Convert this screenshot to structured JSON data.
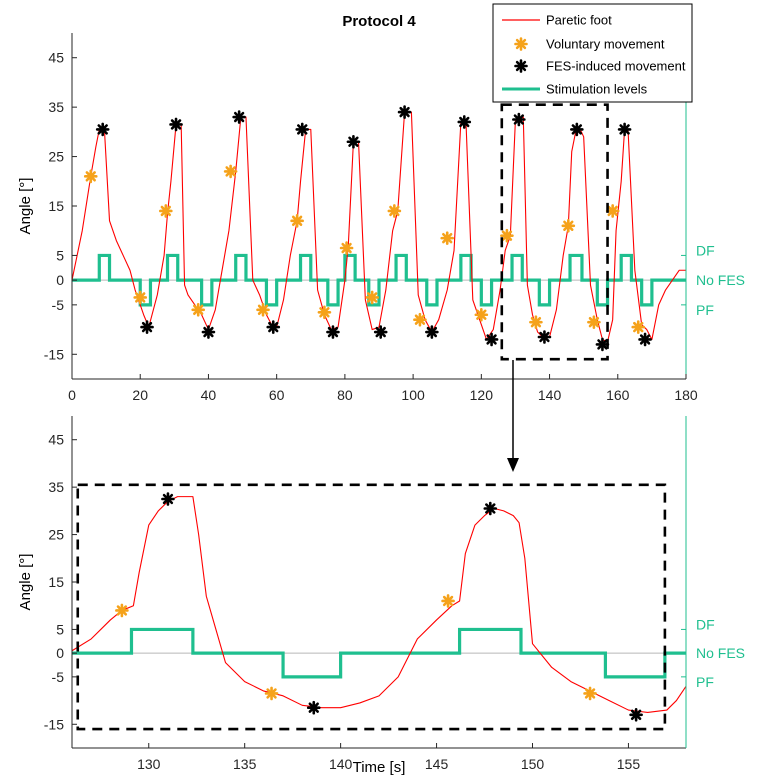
{
  "chart_data": [
    {
      "type": "line",
      "title": "Protocol 4",
      "xlabel": "",
      "ylabel": "Angle [°]",
      "xlim": [
        0,
        180
      ],
      "ylim": [
        -20,
        50
      ],
      "xticks": [
        0,
        20,
        40,
        60,
        80,
        100,
        120,
        140,
        160,
        180
      ],
      "yticks": [
        -15,
        -5,
        0,
        5,
        15,
        25,
        35,
        45
      ],
      "right_axis_labels": [
        {
          "value": 5,
          "label": "DF"
        },
        {
          "value": 0,
          "label": "No FES"
        },
        {
          "value": -5,
          "label": "PF"
        }
      ],
      "legend": {
        "placement": "top-right",
        "entries": [
          "Paretic foot",
          "Voluntary movement",
          "FES-induced movement",
          "Stimulation levels"
        ]
      },
      "series": [
        {
          "name": "Paretic foot",
          "color": "#ff0000",
          "x": [
            0,
            3,
            5.5,
            7,
            8,
            9.5,
            11,
            13,
            15,
            17,
            18.5,
            19.5,
            21,
            22.5,
            25,
            27,
            28,
            29,
            30.5,
            32,
            33,
            34,
            36,
            38,
            40,
            42,
            44,
            46,
            48,
            49.5,
            51,
            53,
            55,
            57,
            58.5,
            60,
            62,
            64,
            66,
            67,
            68.5,
            70,
            72,
            74,
            76,
            78,
            80,
            81,
            82.5,
            84,
            86,
            88,
            90,
            92,
            94,
            95.5,
            97.5,
            99.5,
            101.5,
            103.5,
            105.5,
            107.5,
            110,
            112,
            114,
            115.5,
            117.5,
            119.5,
            121.5,
            123.5,
            125.5,
            127,
            128.5,
            130,
            131,
            132.3,
            133.5,
            135,
            136.5,
            138,
            140,
            142,
            144,
            145.5,
            146.5,
            147.8,
            149,
            150,
            152,
            154,
            155.5,
            157,
            158.5,
            159.5,
            161,
            162,
            163,
            165,
            167,
            168.5,
            170,
            172,
            174,
            176,
            178,
            180
          ],
          "y": [
            0,
            10,
            21,
            27,
            30.5,
            30.5,
            12,
            8,
            5,
            2,
            -2,
            -4,
            -7,
            -9.5,
            -3,
            5,
            13.5,
            20,
            31.5,
            31.5,
            -1,
            -3,
            -5,
            -7,
            -10,
            -6,
            2,
            10,
            22,
            33,
            33,
            0,
            -3,
            -7,
            -9,
            -9.5,
            -4,
            5,
            12,
            20,
            30.5,
            30.5,
            -2,
            -7,
            -10,
            -9.5,
            0,
            7,
            28,
            28,
            -4,
            -10,
            -9.5,
            -2,
            10,
            14,
            34,
            34,
            -3,
            -8,
            -10.5,
            -8,
            -2,
            6,
            32,
            32,
            -4,
            -8,
            -12,
            -10,
            -2,
            6,
            9,
            32.5,
            32.5,
            33,
            -1,
            -7,
            -10.5,
            -11.5,
            -11.5,
            -6,
            5,
            11,
            26,
            30.5,
            30.5,
            29,
            -1,
            -8,
            -12,
            -12.5,
            -8,
            10,
            20,
            30.5,
            30.5,
            2,
            -9,
            -10,
            -12,
            -5,
            -2,
            0,
            2,
            2
          ]
        },
        {
          "name": "Stimulation levels",
          "color": "#1fbf8f",
          "x": [
            0,
            8,
            8,
            11,
            11,
            20,
            20,
            23,
            23,
            28,
            28,
            31,
            31,
            38,
            38,
            41,
            41,
            48,
            48,
            51,
            51,
            57,
            57,
            60,
            60,
            67,
            67,
            70,
            70,
            75,
            75,
            78,
            78,
            80,
            80,
            83,
            83,
            87,
            87,
            90,
            90,
            95,
            95,
            98,
            98,
            104,
            104,
            107,
            107,
            114,
            114,
            117,
            117,
            120,
            120,
            123,
            123,
            129,
            129,
            132,
            132,
            137,
            137,
            140,
            140,
            146,
            146,
            149.5,
            149.5,
            154,
            154,
            157,
            157,
            161,
            161,
            164,
            164,
            167,
            167,
            170,
            170,
            180
          ],
          "y": [
            0,
            0,
            5,
            5,
            0,
            0,
            -5,
            -5,
            0,
            0,
            5,
            5,
            0,
            0,
            -5,
            -5,
            0,
            0,
            5,
            5,
            0,
            0,
            -5,
            -5,
            0,
            0,
            5,
            5,
            0,
            0,
            -5,
            -5,
            0,
            0,
            5,
            5,
            0,
            0,
            -5,
            -5,
            0,
            0,
            5,
            5,
            0,
            0,
            -5,
            -5,
            0,
            0,
            5,
            5,
            0,
            0,
            -5,
            -5,
            0,
            0,
            5,
            5,
            0,
            0,
            -5,
            -5,
            0,
            0,
            5,
            5,
            0,
            0,
            -5,
            -5,
            0,
            0,
            5,
            5,
            0,
            0,
            -5,
            -5,
            0,
            0
          ]
        },
        {
          "name": "Voluntary movement",
          "color": "#f5a21b",
          "x": [
            5.5,
            20,
            27.5,
            37,
            46.5,
            56,
            66,
            74,
            80.5,
            88,
            94.5,
            102,
            110,
            120,
            127.5,
            136,
            145.5,
            153,
            158.5,
            166
          ],
          "y": [
            21,
            -3.5,
            14,
            -6,
            22,
            -6,
            12,
            -6.5,
            6.5,
            -3.5,
            14,
            -8,
            8.5,
            -7,
            9,
            -8.5,
            11,
            -8.5,
            14,
            -9.5
          ]
        },
        {
          "name": "FES-induced movement",
          "color": "#000000",
          "x": [
            9,
            22,
            30.5,
            40,
            49,
            59,
            67.5,
            76.5,
            82.5,
            90.5,
            97.5,
            105.5,
            115,
            123,
            131,
            138.5,
            148,
            155.5,
            162,
            168
          ],
          "y": [
            30.5,
            -9.5,
            31.5,
            -10.5,
            33,
            -9.5,
            30.5,
            -10.5,
            28,
            -10.5,
            34,
            -10.5,
            32,
            -12,
            32.5,
            -11.5,
            30.5,
            -13,
            30.5,
            -12
          ]
        }
      ],
      "zoom_box": {
        "x": [
          126,
          157
        ],
        "y": [
          -16,
          35.5
        ]
      }
    },
    {
      "type": "line",
      "title": "",
      "xlabel": "Time [s]",
      "ylabel": "Angle [°]",
      "xlim": [
        126,
        158
      ],
      "ylim": [
        -20,
        50
      ],
      "xticks": [
        130,
        135,
        140,
        145,
        150,
        155
      ],
      "yticks": [
        -15,
        -5,
        0,
        5,
        15,
        25,
        35,
        45
      ],
      "right_axis_labels": [
        {
          "value": 5,
          "label": "DF"
        },
        {
          "value": 0,
          "label": "No FES"
        },
        {
          "value": -5,
          "label": "PF"
        }
      ],
      "series": [
        {
          "name": "Paretic foot",
          "color": "#ff0000",
          "x": [
            126,
            127,
            128,
            128.6,
            129.2,
            129.5,
            130,
            130.5,
            131,
            131.5,
            132,
            132.3,
            132.6,
            133,
            133.5,
            134,
            135,
            136,
            137,
            138,
            139,
            140,
            141,
            142,
            143,
            144,
            145,
            145.8,
            146.2,
            146.5,
            147,
            147.5,
            148,
            148.5,
            149,
            149.3,
            149.6,
            150,
            151,
            152,
            153,
            154,
            155,
            156,
            157,
            157.5,
            158
          ],
          "y": [
            0.5,
            3,
            7,
            9,
            10,
            17,
            27,
            30,
            32,
            33,
            33,
            33,
            25,
            12,
            5,
            -2,
            -6,
            -8,
            -9,
            -11,
            -11.5,
            -11.5,
            -10.5,
            -9,
            -5,
            3,
            7,
            10,
            11,
            21,
            27,
            29,
            30.5,
            30,
            29,
            27.5,
            20,
            2,
            -3,
            -6,
            -8,
            -10,
            -12,
            -12.5,
            -12,
            -10,
            -7
          ]
        },
        {
          "name": "Stimulation levels",
          "color": "#1fbf8f",
          "x": [
            126,
            129.1,
            129.1,
            132.3,
            132.3,
            137,
            137,
            140,
            140,
            146.2,
            146.2,
            149.4,
            149.4,
            153.8,
            153.8,
            156.9,
            156.9,
            158
          ],
          "y": [
            0,
            0,
            5,
            5,
            0,
            0,
            -5,
            -5,
            0,
            0,
            5,
            5,
            0,
            0,
            -5,
            -5,
            0,
            0
          ]
        },
        {
          "name": "Voluntary movement",
          "color": "#f5a21b",
          "x": [
            128.6,
            136.4,
            145.6,
            153
          ],
          "y": [
            9,
            -8.5,
            11,
            -8.5
          ]
        },
        {
          "name": "FES-induced movement",
          "color": "#000000",
          "x": [
            131,
            138.6,
            147.8,
            155.4
          ],
          "y": [
            32.5,
            -11.5,
            30.5,
            -13
          ]
        }
      ],
      "zoom_box": {
        "x": [
          126.3,
          156.9
        ],
        "y": [
          -16,
          35.5
        ]
      }
    }
  ]
}
